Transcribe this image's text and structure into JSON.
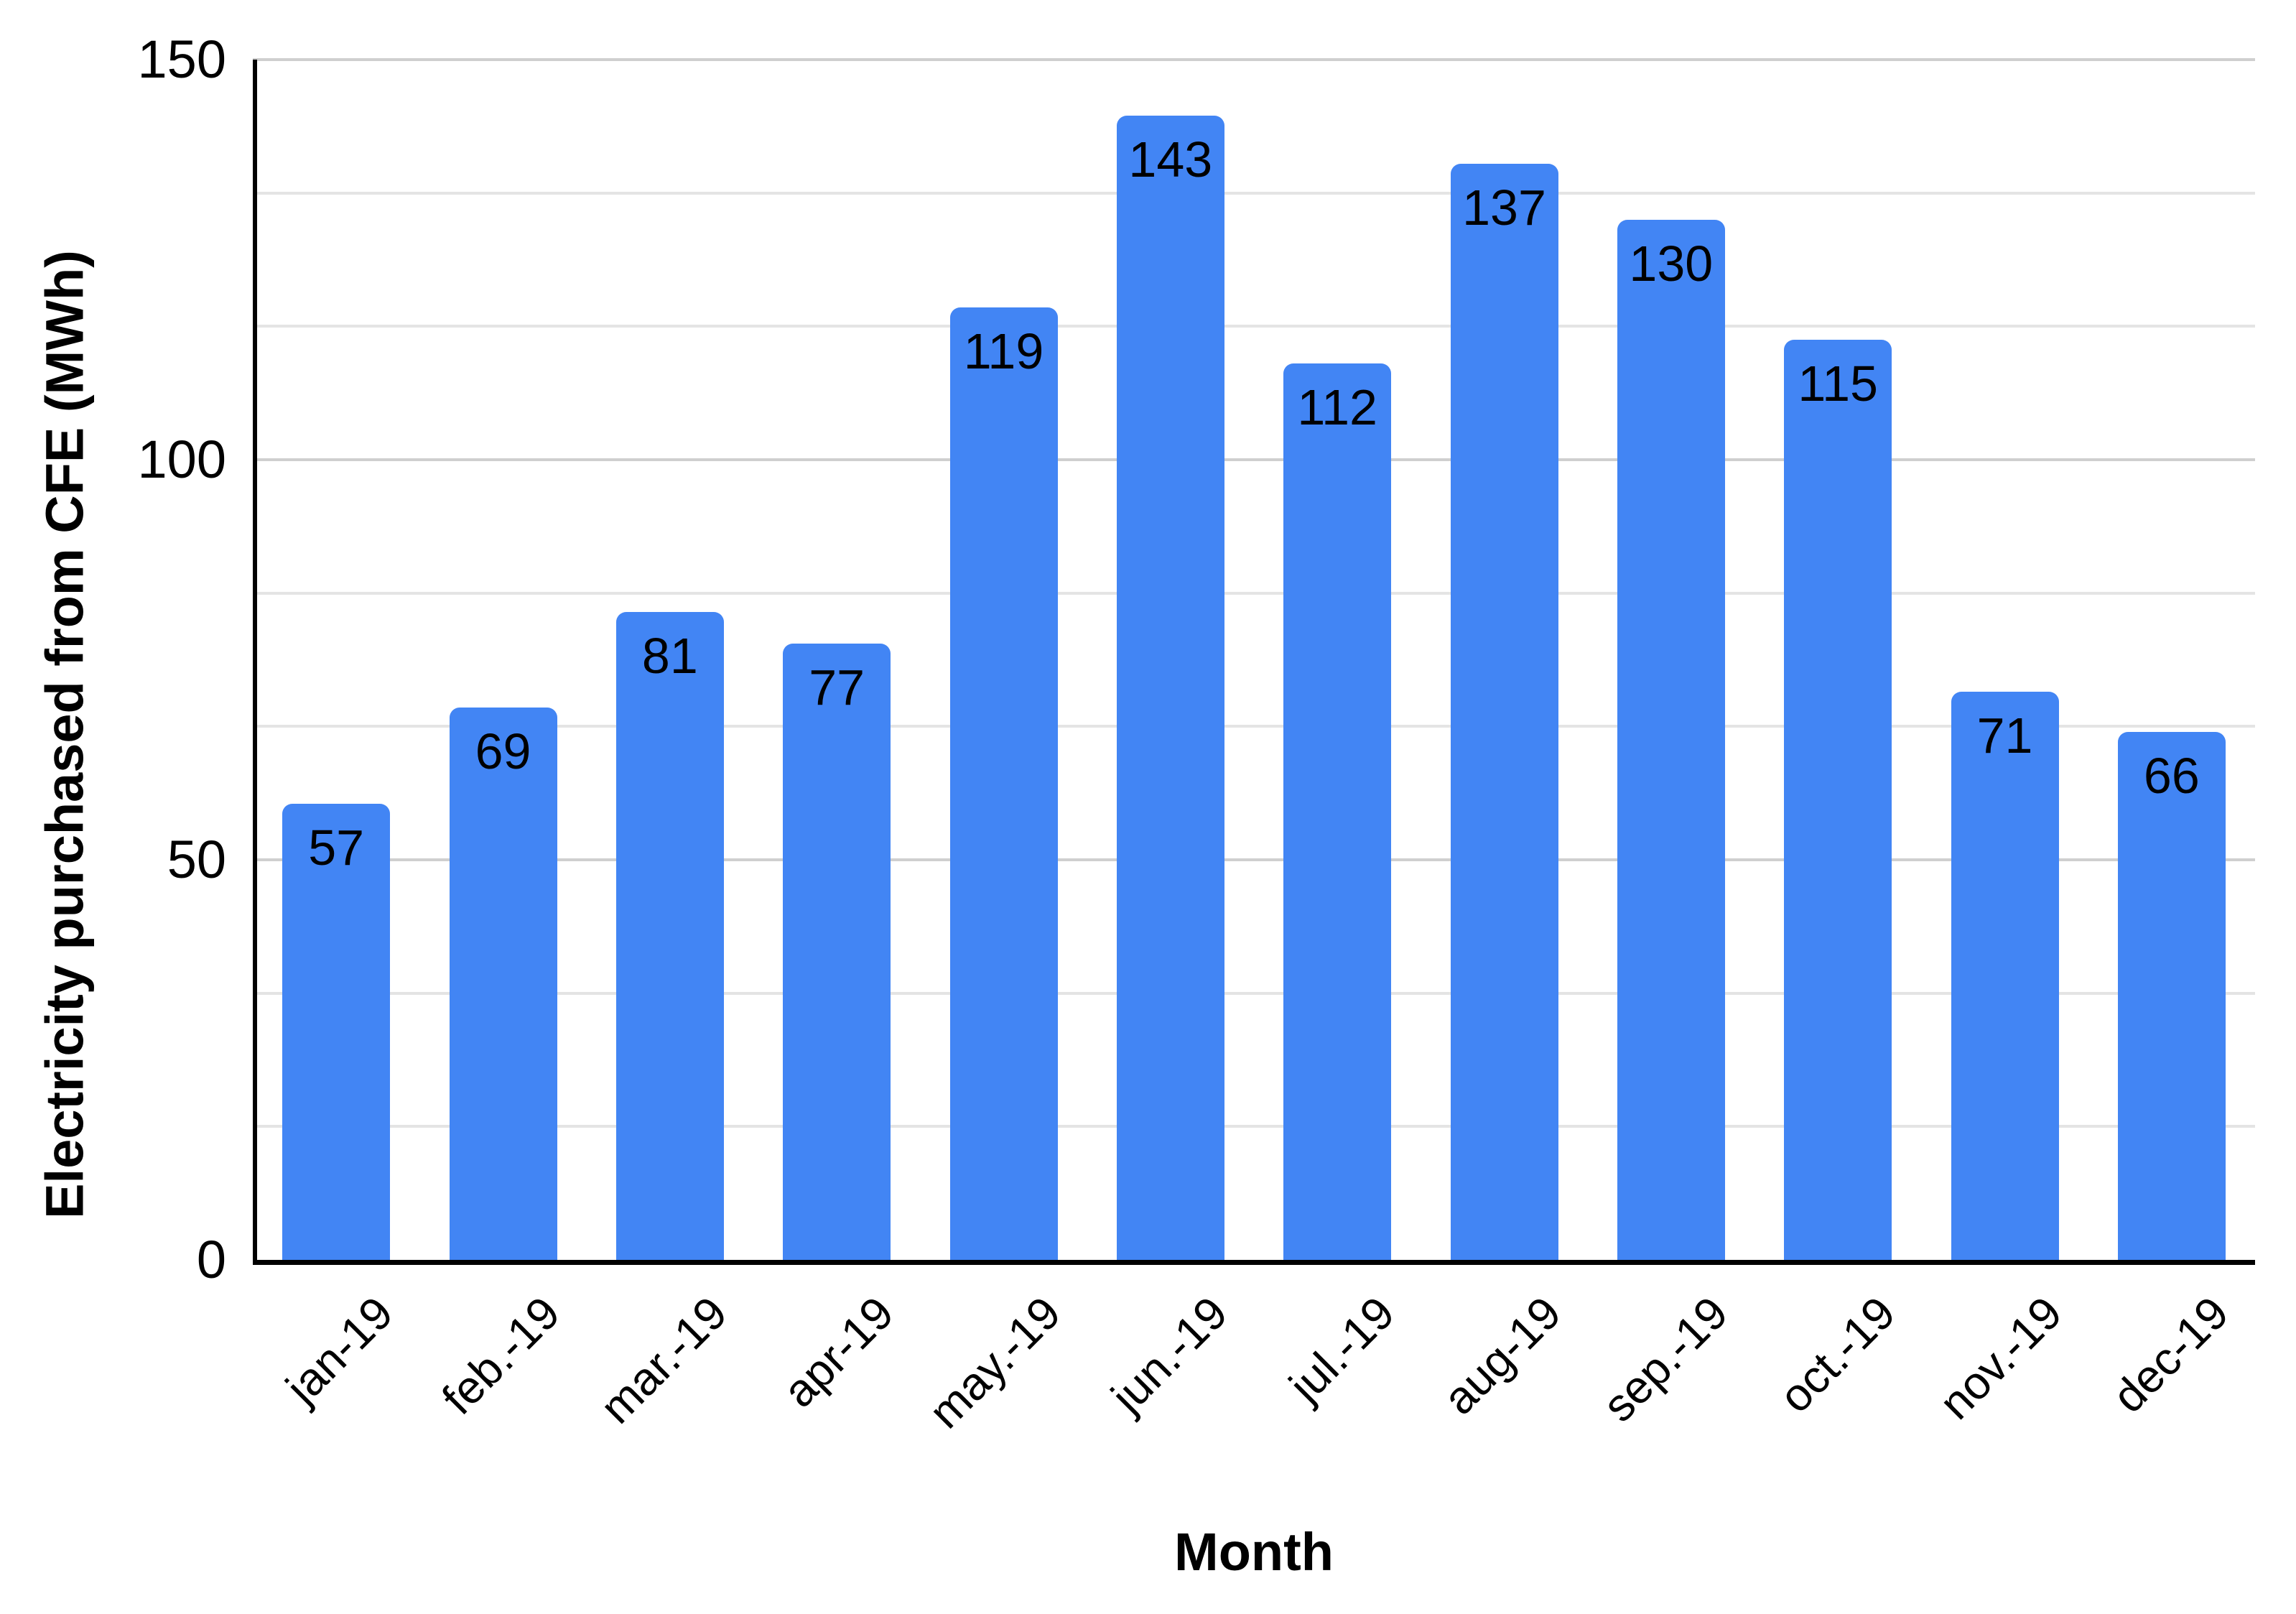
{
  "chart_data": {
    "type": "bar",
    "title": "",
    "xlabel": "Month",
    "ylabel": "Electricity purchased from CFE (MWh)",
    "categories": [
      "jan-19",
      "feb.-19",
      "mar.-19",
      "apr-19",
      "may.-19",
      "jun.-19",
      "jul.-19",
      "aug-19",
      "sep.-19",
      "oct.-19",
      "nov.-19",
      "dec-19"
    ],
    "values": [
      57,
      69,
      81,
      77,
      119,
      143,
      112,
      137,
      130,
      115,
      71,
      66
    ],
    "bar_labels": [
      "57",
      "69",
      "81",
      "77",
      "119",
      "143",
      "112",
      "137",
      "130",
      "115",
      "71",
      "66"
    ],
    "ylim": [
      0,
      150
    ],
    "yticks": [
      0,
      50,
      100,
      150
    ],
    "gridlines": {
      "minor_divisions": 9,
      "major_values": [
        0,
        50,
        100,
        150
      ],
      "visible": true
    },
    "legend": {
      "visible": false
    },
    "colors": {
      "bar": "#4285F4",
      "gridline_major": "#cfcfcf",
      "gridline_minor": "#e4e4e4",
      "axis": "#000000",
      "text": "#000000"
    }
  }
}
